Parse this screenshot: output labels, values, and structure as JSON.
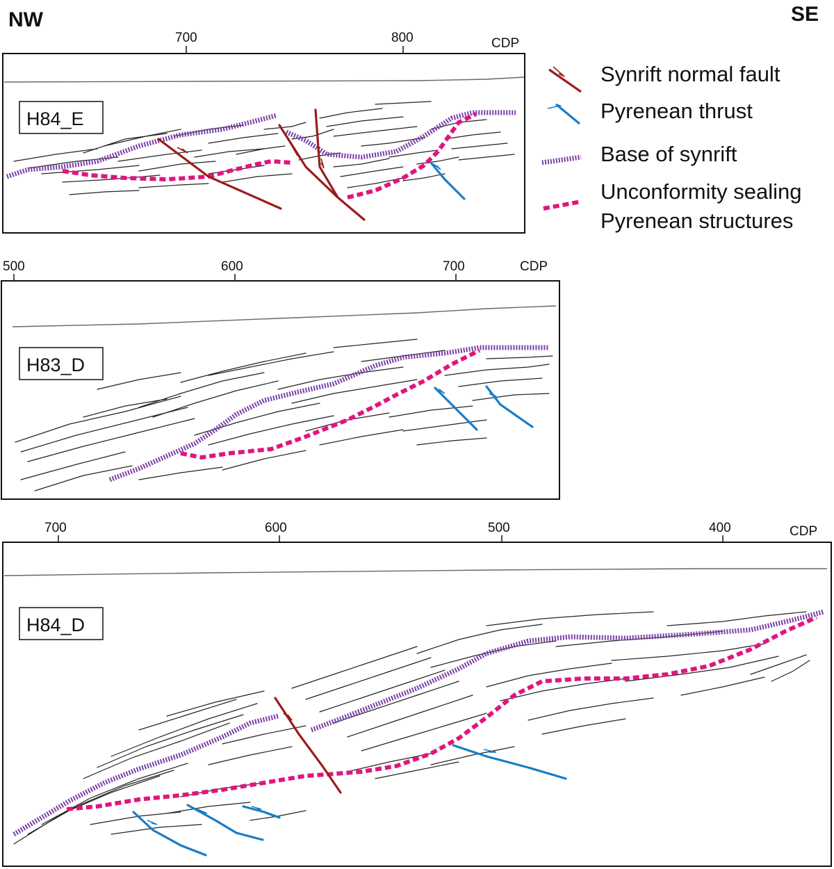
{
  "directions": {
    "left": "NW",
    "right": "SE"
  },
  "legend": {
    "items": [
      {
        "label": "Synrift normal fault",
        "color": "#9b1c1c",
        "symbol": "fault-icon"
      },
      {
        "label": "Pyrenean thrust",
        "color": "#1a7cc4",
        "symbol": "thrust-icon"
      },
      {
        "label": "Base of synrift",
        "color": "#7a3fa8",
        "symbol": "base-synrift-icon"
      },
      {
        "label": "Unconformity sealing",
        "label2": "Pyrenean structures",
        "color": "#e0157f",
        "symbol": "unconformity-icon"
      }
    ]
  },
  "sections": [
    {
      "name": "H84_E",
      "axis_label": "CDP",
      "ticks": [
        "700",
        "800"
      ]
    },
    {
      "name": "H83_D",
      "axis_label": "CDP",
      "ticks": [
        "500",
        "600",
        "700"
      ]
    },
    {
      "name": "H84_D",
      "axis_label": "CDP",
      "ticks": [
        "700",
        "600",
        "500",
        "400"
      ]
    }
  ]
}
